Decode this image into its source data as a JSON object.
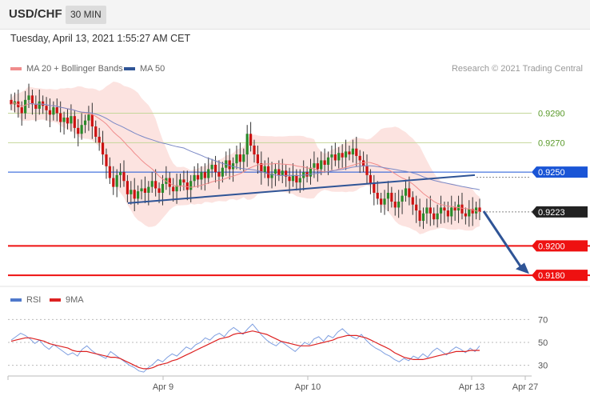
{
  "header": {
    "pair": "USD/CHF",
    "timeframe": "30 MIN"
  },
  "timestamp": "Tuesday, April 13, 2021 1:55:27 AM CET",
  "main_legend": [
    {
      "label": "MA 20 + Bollinger Bands",
      "color": "#f08c8c"
    },
    {
      "label": "MA 50",
      "color": "#2f5496"
    }
  ],
  "credit": "Research © 2021 Trading Central",
  "rsi_legend": [
    {
      "label": "RSI",
      "color": "#4f79cc"
    },
    {
      "label": "9MA",
      "color": "#dd2222"
    }
  ],
  "colors": {
    "up": "#2a8a2a",
    "down": "#cc1111",
    "support": "#ee1111",
    "resistance": "#1a55d6",
    "current": "#222222",
    "trend": "#2f5496",
    "green_level": "#8fb55a",
    "bb_fill": "#fbd9d6"
  },
  "chart_data": [
    {
      "type": "candlestick",
      "title": "USD/CHF 30 MIN",
      "ylim": [
        0.91725,
        0.93125
      ],
      "x_tick_labels": [
        "Apr 9",
        "Apr 10",
        "Apr 13",
        "Apr 27"
      ],
      "levels": [
        {
          "value": 0.929,
          "label": "0.9290",
          "style": "green"
        },
        {
          "value": 0.927,
          "label": "0.9270",
          "style": "green"
        },
        {
          "value": 0.925,
          "label": "0.9250",
          "style": "resistance"
        },
        {
          "value": 0.9223,
          "label": "0.9223",
          "style": "current"
        },
        {
          "value": 0.92,
          "label": "0.9200",
          "style": "support"
        },
        {
          "value": 0.918,
          "label": "0.9180",
          "style": "support"
        }
      ],
      "series_close": [
        0.9296,
        0.9298,
        0.9294,
        0.929,
        0.9299,
        0.9302,
        0.9296,
        0.9293,
        0.9298,
        0.9295,
        0.9292,
        0.9289,
        0.9294,
        0.929,
        0.9284,
        0.9287,
        0.9283,
        0.9288,
        0.928,
        0.9276,
        0.9282,
        0.9285,
        0.9289,
        0.9281,
        0.9274,
        0.927,
        0.9262,
        0.9254,
        0.9246,
        0.924,
        0.9248,
        0.925,
        0.9244,
        0.9235,
        0.9238,
        0.9232,
        0.9237,
        0.9239,
        0.9236,
        0.924,
        0.9244,
        0.9239,
        0.9236,
        0.9242,
        0.9246,
        0.924,
        0.9237,
        0.9241,
        0.9245,
        0.9243,
        0.9238,
        0.9244,
        0.9248,
        0.9245,
        0.925,
        0.9246,
        0.9252,
        0.9255,
        0.925,
        0.9247,
        0.9253,
        0.9258,
        0.9252,
        0.9256,
        0.9262,
        0.9257,
        0.9262,
        0.9276,
        0.9268,
        0.9262,
        0.9256,
        0.925,
        0.9254,
        0.9246,
        0.9249,
        0.9252,
        0.9248,
        0.9251,
        0.9247,
        0.9244,
        0.9248,
        0.9243,
        0.9246,
        0.925,
        0.9247,
        0.9253,
        0.9256,
        0.9252,
        0.9258,
        0.9255,
        0.926,
        0.9262,
        0.9258,
        0.9263,
        0.926,
        0.9264,
        0.9262,
        0.9266,
        0.9261,
        0.9258,
        0.9254,
        0.9248,
        0.9242,
        0.9236,
        0.9232,
        0.9228,
        0.9232,
        0.9236,
        0.923,
        0.9226,
        0.923,
        0.9234,
        0.9239,
        0.9233,
        0.9228,
        0.9224,
        0.9217,
        0.9222,
        0.9226,
        0.9222,
        0.9218,
        0.9222,
        0.9226,
        0.9224,
        0.922,
        0.9226,
        0.9224,
        0.9228,
        0.9222,
        0.922,
        0.9225,
        0.9222,
        0.9226,
        0.9223
      ],
      "annotations": [
        {
          "type": "trendline",
          "from": [
            0.205,
            0.9229
          ],
          "to": [
            0.735,
            0.9248
          ]
        },
        {
          "type": "arrow",
          "from": [
            0.0,
            0.9223
          ],
          "to": [
            0.0,
            0.9181
          ]
        }
      ]
    },
    {
      "type": "line",
      "title": "RSI",
      "ylim": [
        22,
        78
      ],
      "y_ticks": [
        30,
        50,
        70
      ],
      "series": [
        {
          "name": "RSI",
          "values": [
            52,
            55,
            58,
            56,
            53,
            49,
            52,
            47,
            44,
            48,
            45,
            42,
            39,
            41,
            38,
            44,
            47,
            43,
            40,
            38,
            36,
            42,
            39,
            36,
            33,
            30,
            28,
            25,
            24,
            28,
            31,
            35,
            33,
            37,
            40,
            38,
            42,
            46,
            44,
            48,
            50,
            54,
            52,
            56,
            58,
            55,
            60,
            63,
            60,
            57,
            62,
            66,
            61,
            56,
            52,
            49,
            47,
            51,
            48,
            45,
            42,
            46,
            50,
            48,
            53,
            55,
            51,
            56,
            54,
            59,
            62,
            58,
            55,
            53,
            57,
            52,
            48,
            45,
            43,
            40,
            38,
            35,
            33,
            36,
            34,
            38,
            36,
            40,
            37,
            42,
            45,
            42,
            39,
            43,
            46,
            44,
            41,
            45,
            42,
            47
          ]
        },
        {
          "name": "9MA",
          "values": [
            51,
            52,
            53,
            54,
            54,
            53,
            52,
            51,
            49,
            48,
            47,
            46,
            45,
            43,
            42,
            42,
            42,
            41,
            40,
            39,
            38,
            37,
            37,
            36,
            34,
            32,
            30,
            28,
            27,
            27,
            28,
            30,
            31,
            32,
            34,
            35,
            37,
            39,
            41,
            43,
            45,
            47,
            49,
            51,
            53,
            54,
            55,
            57,
            58,
            58,
            59,
            60,
            59,
            58,
            57,
            55,
            53,
            51,
            50,
            49,
            48,
            47,
            47,
            47,
            48,
            49,
            50,
            51,
            52,
            54,
            55,
            56,
            56,
            56,
            55,
            54,
            52,
            50,
            48,
            46,
            44,
            41,
            39,
            37,
            36,
            35,
            35,
            35,
            36,
            37,
            38,
            39,
            40,
            41,
            42,
            42,
            42,
            43,
            43,
            43
          ]
        }
      ]
    }
  ]
}
